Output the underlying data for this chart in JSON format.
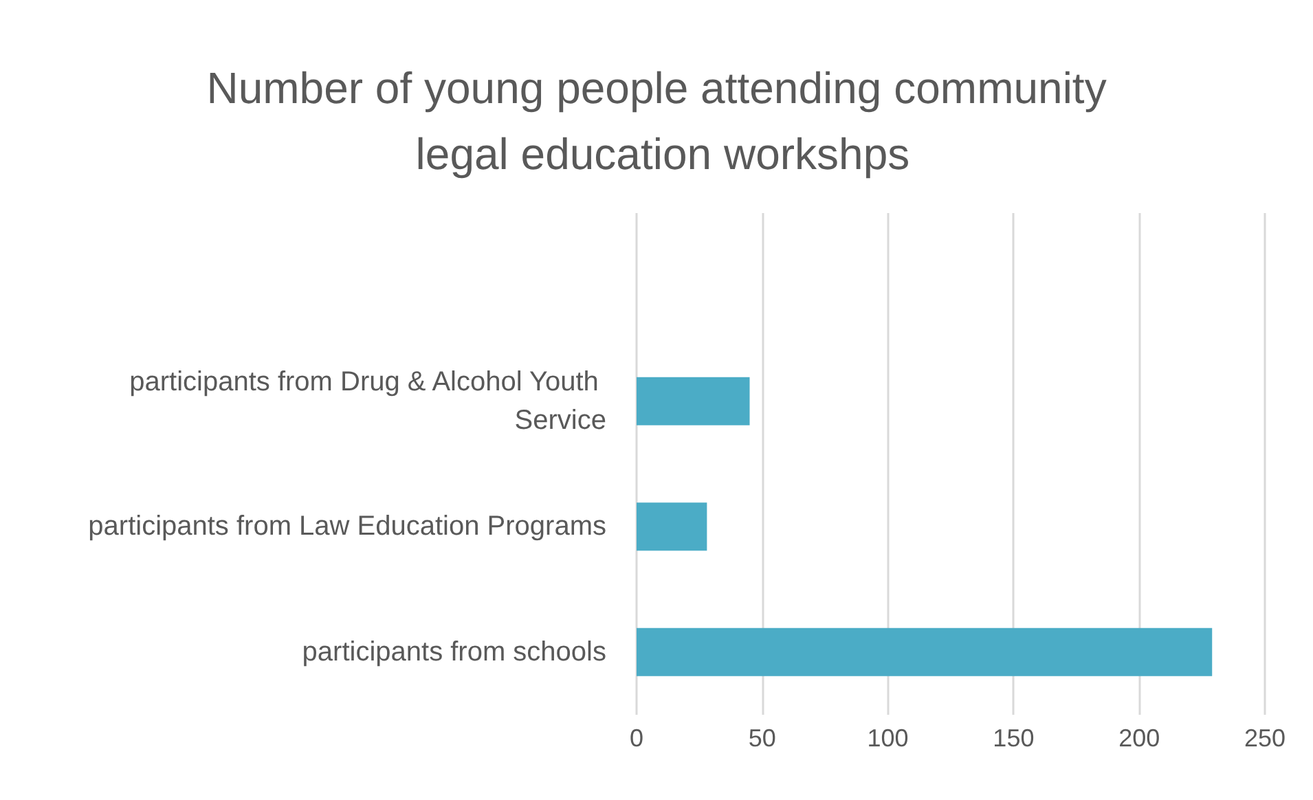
{
  "chart_data": {
    "type": "bar",
    "orientation": "horizontal",
    "title": "Number of young people attending community legal education workshps",
    "categories": [
      null,
      "participants from Drug & Alcohol Youth Service",
      "participants from Law Education Programs",
      "participants from schools"
    ],
    "values": [
      null,
      45,
      28,
      229
    ],
    "color": "#4bacc6",
    "xlim": [
      0,
      250
    ],
    "xticks": [
      0,
      50,
      100,
      150,
      200,
      250
    ],
    "grid": "x"
  }
}
